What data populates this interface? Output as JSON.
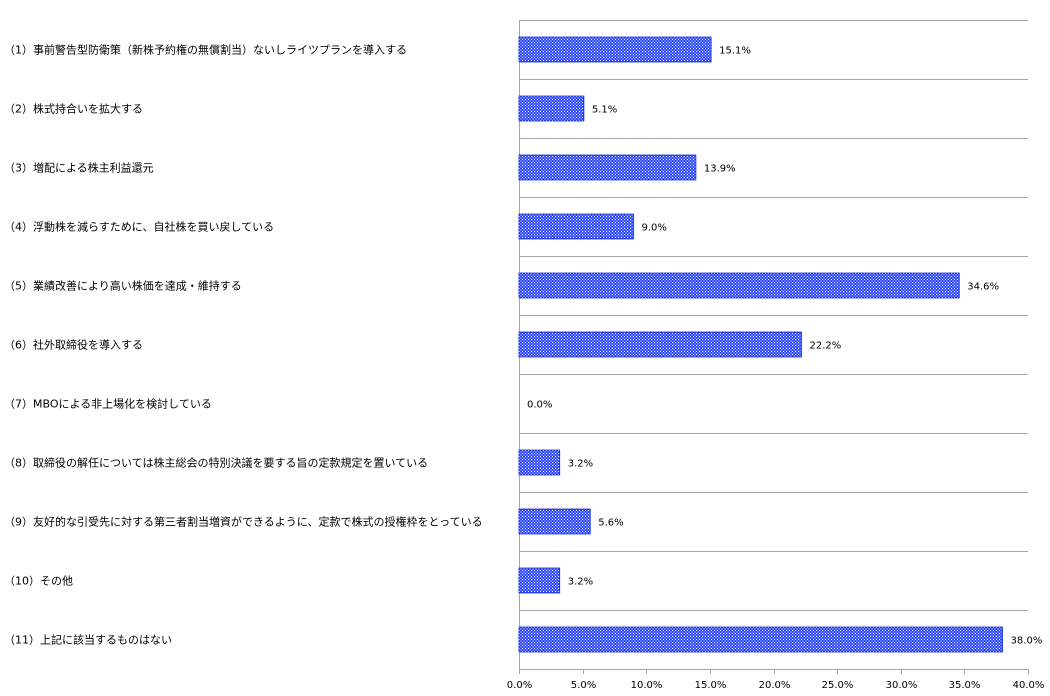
{
  "chart_data": {
    "type": "bar",
    "orientation": "horizontal",
    "categories": [
      "（1）事前警告型防衛策（新株予約権の無償割当）ないしライツプランを導入する",
      "（2）株式持合いを拡大する",
      "（3）増配による株主利益還元",
      "（4）浮動株を減らすために、自社株を買い戻している",
      "（5）業績改善により高い株価を達成・維持する",
      "（6）社外取締役を導入する",
      "（7）MBOによる非上場化を検討している",
      "（8）取締役の解任については株主総会の特別決議を要する旨の定款規定を置いている",
      "（9）友好的な引受先に対する第三者割当増資ができるように、定款で株式の授権枠をとっている",
      "（10）その他",
      "（11）上記に該当するものはない"
    ],
    "values": [
      15.1,
      5.1,
      13.9,
      9.0,
      34.6,
      22.2,
      0.0,
      3.2,
      5.6,
      3.2,
      38.0
    ],
    "value_labels": [
      "15.1%",
      "5.1%",
      "13.9%",
      "9.0%",
      "34.6%",
      "22.2%",
      "0.0%",
      "3.2%",
      "5.6%",
      "3.2%",
      "38.0%"
    ],
    "xlim": [
      0,
      40
    ],
    "xticks": [
      0,
      5,
      10,
      15,
      20,
      25,
      30,
      35,
      40
    ],
    "xtick_labels": [
      "0.0%",
      "5.0%",
      "10.0%",
      "15.0%",
      "20.0%",
      "25.0%",
      "30.0%",
      "35.0%",
      "40.0%"
    ],
    "title": "",
    "xlabel": "",
    "ylabel": "",
    "grid": "horizontal separators",
    "bar_color": "#1f3fff",
    "bar_pattern": "dotted",
    "gridline_color": "#a6a6a6"
  }
}
